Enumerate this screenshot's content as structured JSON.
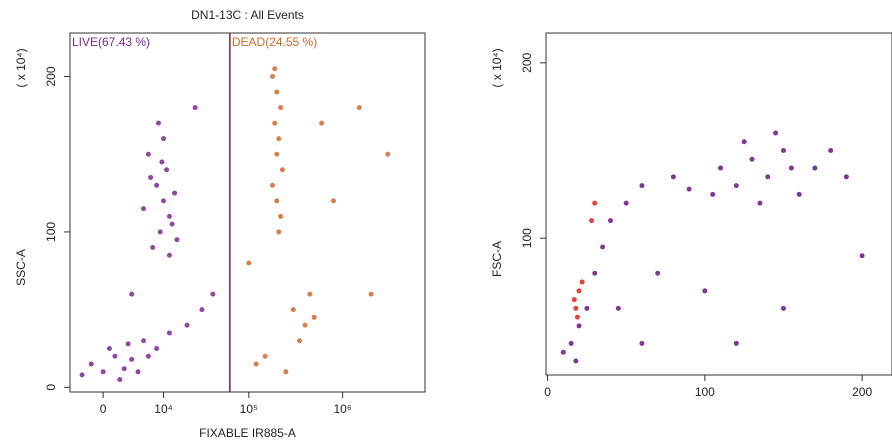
{
  "chart_data": [
    {
      "type": "scatter",
      "title": "DN1-13C : All Events",
      "x_label": "FIXABLE IR885-A",
      "y_label": "SSC-A",
      "y_unit": "( x 10⁴)",
      "xscale": "symlog",
      "linthresh": 3000,
      "xlim": [
        -3700,
        7400000
      ],
      "ylim": [
        -3,
        228
      ],
      "xticks": [
        0,
        {
          "value": 10000,
          "label": "10⁴"
        },
        {
          "value": 100000,
          "label": "10⁵"
        },
        {
          "value": 1000000,
          "label": "10⁶"
        }
      ],
      "yticks": [
        0,
        100,
        200
      ],
      "gate_x": 62000,
      "series": [
        {
          "name": "LIVE(67.43 %)",
          "color": "#7b2a8c",
          "x": [
            6000,
            8000,
            10000,
            12000,
            9000,
            7000,
            11000,
            14000,
            5000,
            15000,
            10000,
            8500,
            13000,
            6500,
            12000,
            9500,
            -1000,
            0,
            1000,
            2000,
            3000,
            500,
            -2000,
            4000,
            1500,
            2500,
            6000,
            8000,
            12000,
            20000,
            30000,
            5000,
            40000,
            25000,
            3000
          ],
          "values": [
            150,
            130,
            120,
            110,
            100,
            90,
            140,
            125,
            115,
            95,
            160,
            170,
            105,
            135,
            85,
            145,
            15,
            10,
            20,
            12,
            18,
            25,
            8,
            10,
            5,
            28,
            20,
            25,
            35,
            40,
            50,
            30,
            60,
            180,
            60
          ]
        },
        {
          "name": "DEAD(24.55 %)",
          "color": "#d2692a",
          "x": [
            180000,
            200000,
            220000,
            190000,
            210000,
            200000,
            230000,
            180000,
            200000,
            220000,
            190000,
            210000,
            300000,
            400000,
            350000,
            150000,
            500000,
            250000,
            120000,
            450000,
            800000,
            1500000,
            3000000,
            100000,
            600000,
            2000000
          ],
          "values": [
            200,
            190,
            180,
            170,
            160,
            150,
            140,
            130,
            120,
            110,
            205,
            100,
            50,
            40,
            30,
            20,
            45,
            10,
            15,
            60,
            120,
            180,
            150,
            80,
            170,
            60
          ]
        }
      ]
    },
    {
      "type": "scatter",
      "y_label": "FSC-A",
      "y_unit": "( x 10⁴)",
      "xlim": [
        -1,
        219
      ],
      "ylim": [
        22,
        217
      ],
      "xticks": [
        0,
        100,
        200
      ],
      "yticks": [
        100,
        200
      ],
      "series": [
        {
          "color": "#6a1580",
          "x": [
            110,
            130,
            150,
            170,
            120,
            140,
            160,
            180,
            125,
            145,
            105,
            190,
            135,
            155,
            15,
            20,
            25,
            30,
            35,
            18,
            40,
            50,
            60,
            80,
            90,
            10,
            45,
            70,
            100,
            150,
            200,
            60,
            120
          ],
          "values": [
            140,
            145,
            150,
            140,
            130,
            135,
            125,
            150,
            155,
            160,
            125,
            135,
            120,
            140,
            40,
            50,
            60,
            80,
            95,
            30,
            110,
            120,
            130,
            135,
            128,
            35,
            60,
            80,
            70,
            60,
            90,
            40,
            40
          ]
        },
        {
          "color": "#e0201c",
          "x": [
            18,
            20,
            17,
            22,
            28,
            30,
            19
          ],
          "values": [
            60,
            70,
            65,
            75,
            110,
            120,
            55
          ]
        }
      ]
    }
  ]
}
